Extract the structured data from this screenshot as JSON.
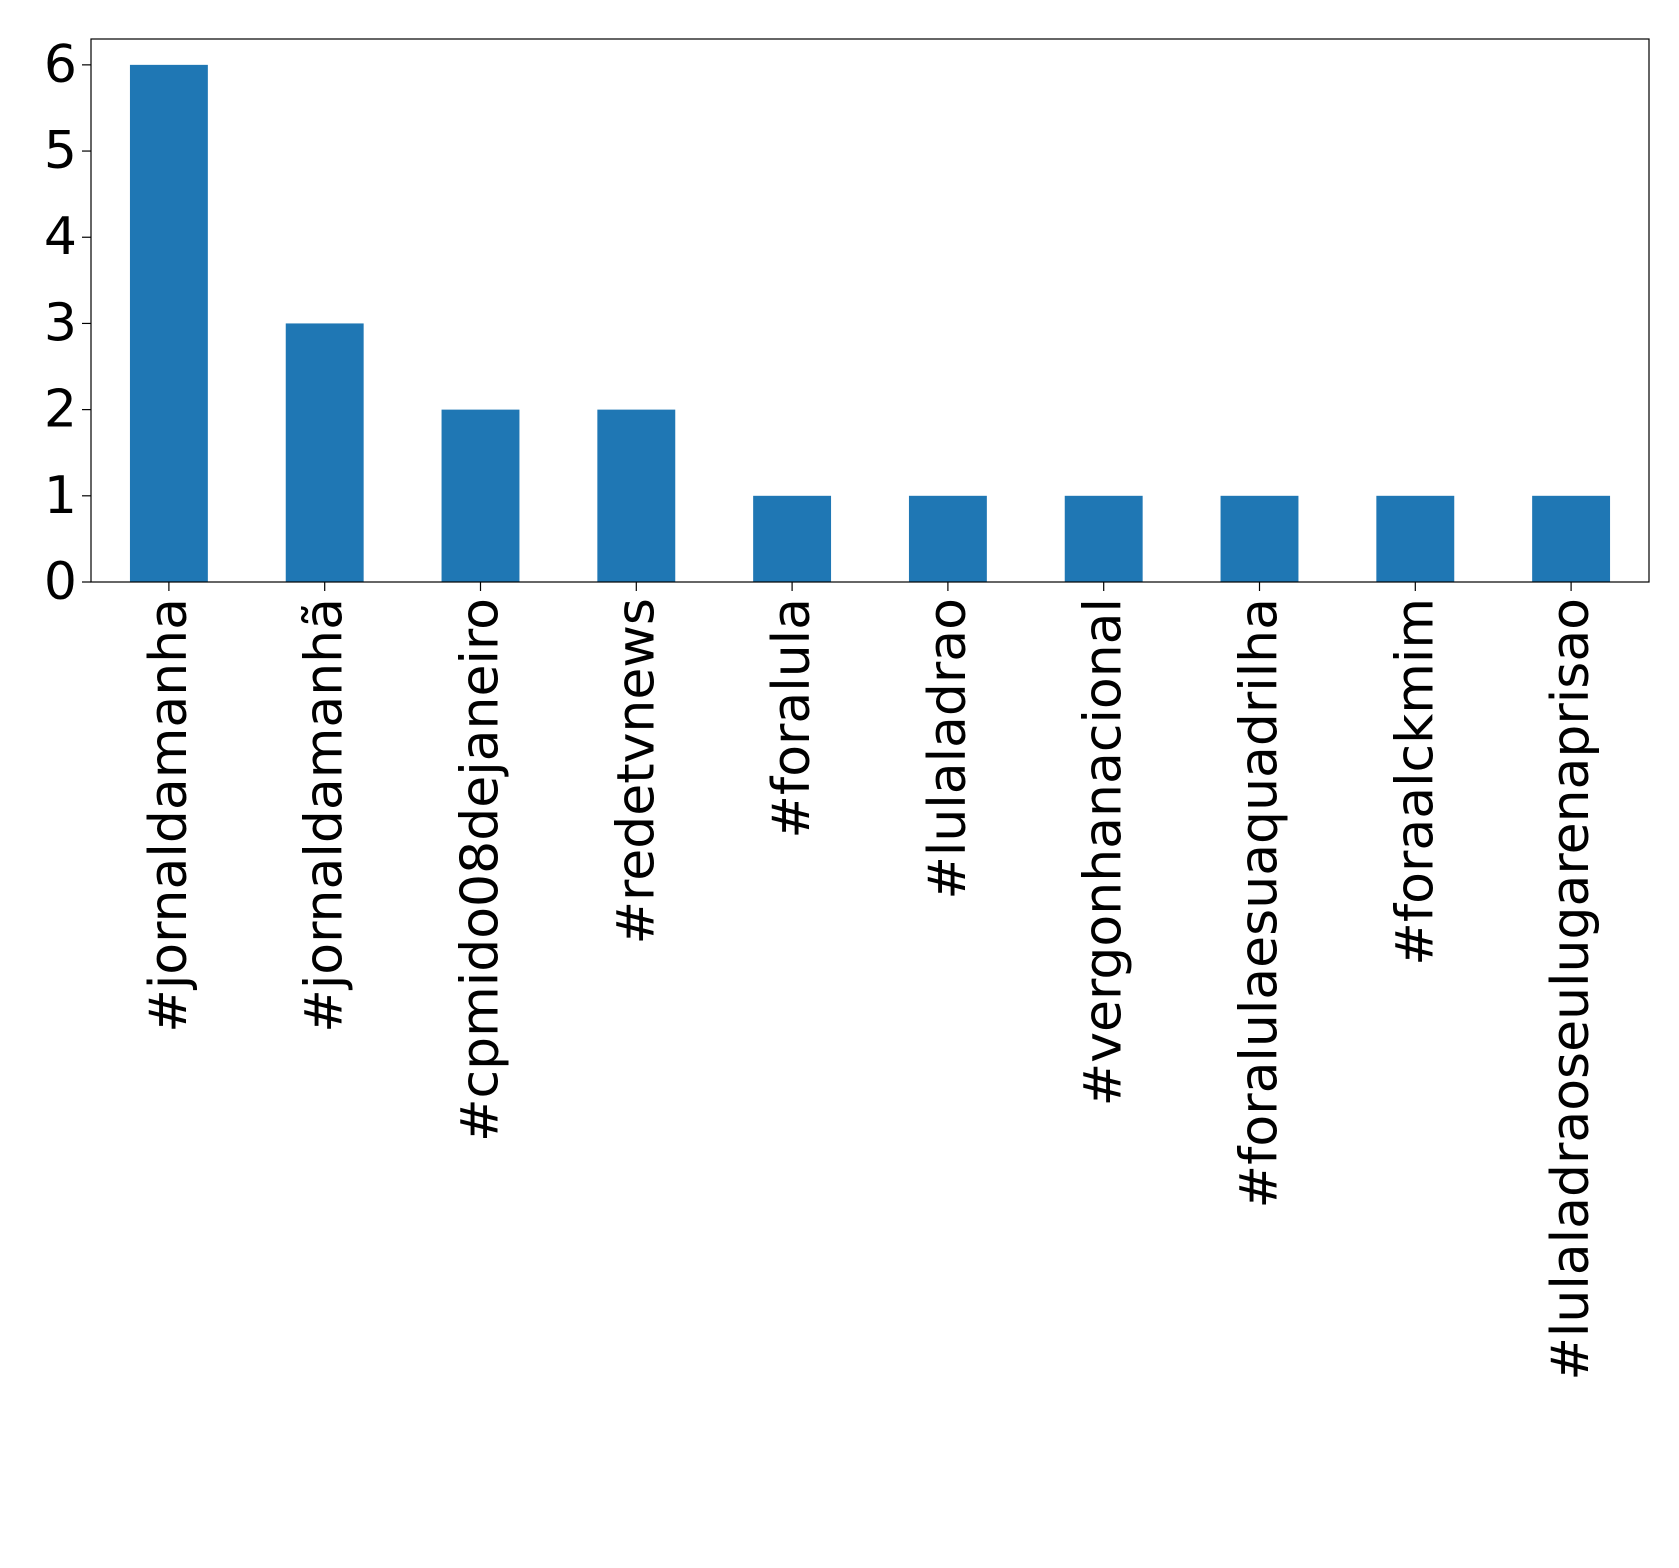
{
  "chart_data": {
    "type": "bar",
    "categories": [
      "#jornaldamanha",
      "#jornaldamanhã",
      "#cpmido08dejaneiro",
      "#redetvnews",
      "#foralula",
      "#lulaladrao",
      "#vergonhanacional",
      "#foralulaesuaquadrilha",
      "#foraalckmim",
      "#lulaladraoseulugarenaprisao"
    ],
    "values": [
      6,
      3,
      2,
      2,
      1,
      1,
      1,
      1,
      1,
      1
    ],
    "ylim": [
      0,
      6.3
    ],
    "yticks": [
      "0",
      "1",
      "2",
      "3",
      "4",
      "5",
      "6"
    ],
    "title": "",
    "xlabel": "",
    "ylabel": "",
    "bar_color": "#1f77b4",
    "grid": false,
    "legend": "none"
  }
}
